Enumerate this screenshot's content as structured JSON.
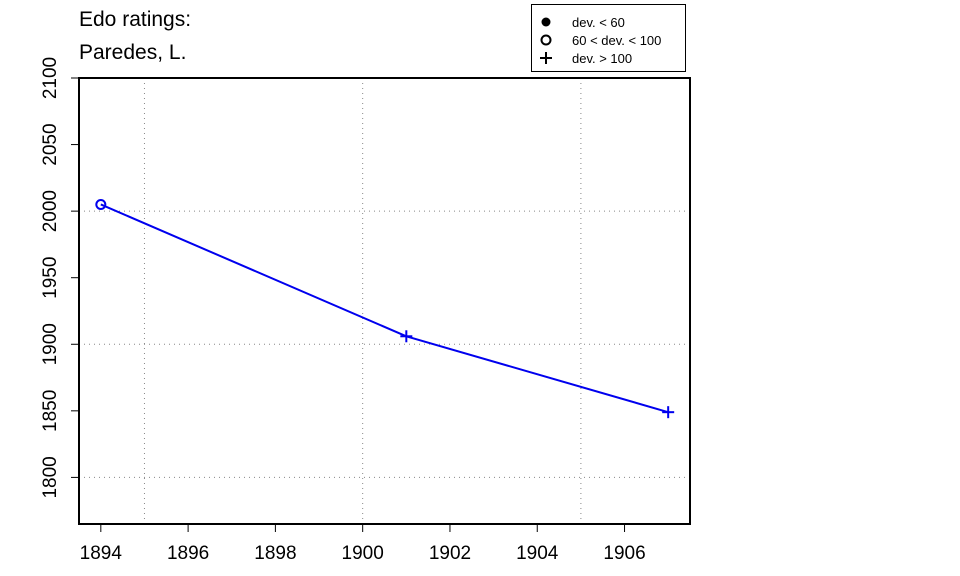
{
  "title_lines": [
    "Edo ratings:",
    "Paredes, L."
  ],
  "legend": {
    "position": "top-right",
    "items": [
      {
        "symbol": "filled-circle",
        "label": "dev. < 60"
      },
      {
        "symbol": "open-circle",
        "label": "60 < dev. < 100"
      },
      {
        "symbol": "plus",
        "label": "dev. > 100"
      }
    ]
  },
  "colors": {
    "line": "#0000ee",
    "axis": "#000000",
    "grid": "#888888"
  },
  "chart_data": {
    "type": "line",
    "title": "Edo ratings: Paredes, L.",
    "xlabel": "",
    "ylabel": "",
    "xlim": [
      1893.5,
      1907.5
    ],
    "ylim": [
      1765,
      2100
    ],
    "x_ticks": [
      1894,
      1896,
      1898,
      1900,
      1902,
      1904,
      1906
    ],
    "y_ticks": [
      1800,
      1850,
      1900,
      1950,
      2000,
      2050,
      2100
    ],
    "x_grid": [
      1895,
      1900,
      1905
    ],
    "y_grid": [
      1800,
      1900,
      2000
    ],
    "grid": true,
    "series": [
      {
        "points": [
          {
            "x": 1894,
            "y": 2005,
            "marker": "open-circle"
          },
          {
            "x": 1901,
            "y": 1906,
            "marker": "plus"
          },
          {
            "x": 1907,
            "y": 1849,
            "marker": "plus"
          }
        ]
      }
    ]
  }
}
